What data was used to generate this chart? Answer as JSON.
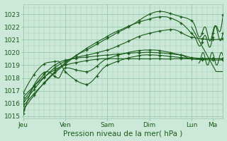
{
  "bg_color": "#cce8d8",
  "grid_color": "#9dc8b0",
  "line_color": "#1a5c1a",
  "marker_color": "#1a5c1a",
  "ylabel_ticks": [
    1015,
    1016,
    1017,
    1018,
    1019,
    1020,
    1021,
    1022,
    1023
  ],
  "ylim": [
    1014.8,
    1023.8
  ],
  "xlabel": "Pression niveau de la mer( hPa )",
  "xlabel_fontsize": 7.5,
  "tick_fontsize": 6.5,
  "day_labels": [
    "Jeu",
    "Ven",
    "Sam",
    "Dim",
    "Lun",
    "Ma"
  ],
  "day_positions": [
    0,
    24,
    48,
    72,
    96,
    108
  ],
  "total_hours": 114,
  "figsize": [
    3.2,
    2.0
  ],
  "dpi": 100
}
